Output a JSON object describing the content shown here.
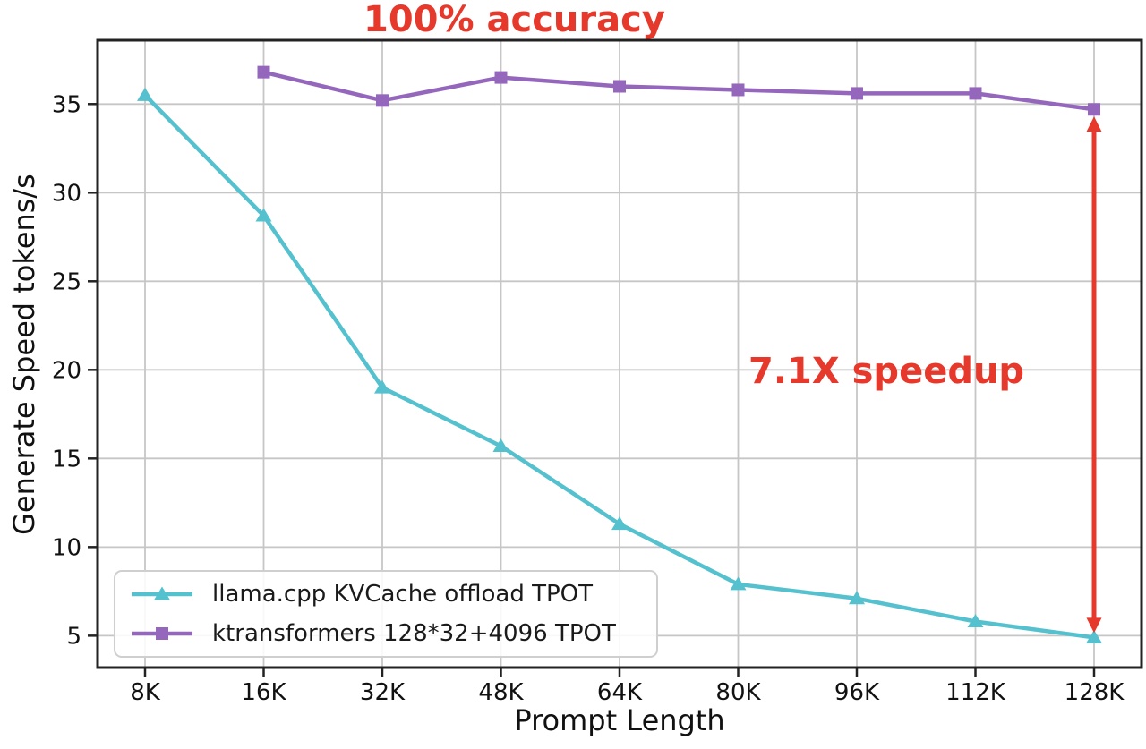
{
  "figure": {
    "background": "#ffffff",
    "accent_red": "#e6382b",
    "grid_color": "#c6c6c6",
    "spine_color": "#222222",
    "tick_text_color": "#111111"
  },
  "annotations": {
    "accuracy_label": "100% accuracy",
    "speedup_label": "7.1X speedup"
  },
  "chart_data": {
    "type": "line",
    "title": "100% accuracy",
    "xlabel": "Prompt Length",
    "ylabel": "Generate Speed tokens/s",
    "categories": [
      "8K",
      "16K",
      "32K",
      "48K",
      "64K",
      "80K",
      "96K",
      "112K",
      "128K"
    ],
    "y_ticks": [
      5,
      10,
      15,
      20,
      25,
      30,
      35
    ],
    "ylim": [
      3.2,
      38.6
    ],
    "grid": true,
    "legend_position": "lower left",
    "series": [
      {
        "name": "llama.cpp KVCache offload TPOT",
        "color": "#55c1cf",
        "marker": "triangle-up",
        "values": [
          35.5,
          28.7,
          19.0,
          15.7,
          11.3,
          7.9,
          7.1,
          5.8,
          4.9
        ]
      },
      {
        "name": "ktransformers 128*32+4096 TPOT",
        "color": "#9467bd",
        "marker": "square",
        "values": [
          null,
          36.8,
          35.2,
          36.5,
          36.0,
          35.8,
          35.6,
          35.6,
          34.7
        ]
      }
    ],
    "annotation_arrow": {
      "x": "128K",
      "from_value": 34.3,
      "to_value": 5.15,
      "color": "#e6382b",
      "label": "7.1X speedup",
      "style": "double-headed-vertical"
    }
  }
}
